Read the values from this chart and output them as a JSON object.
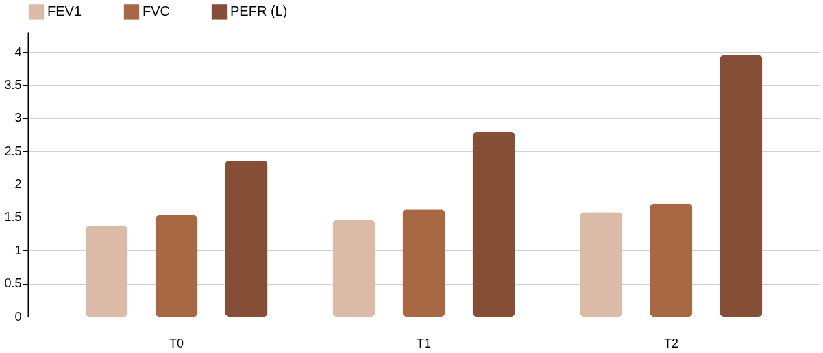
{
  "chart_data": {
    "type": "bar",
    "categories": [
      "T0",
      "T1",
      "T2"
    ],
    "series": [
      {
        "name": "FEV1",
        "color": "#dcbaa8",
        "values": [
          1.37,
          1.46,
          1.58
        ]
      },
      {
        "name": "FVC",
        "color": "#a86844",
        "values": [
          1.53,
          1.62,
          1.71
        ]
      },
      {
        "name": "PEFR (L)",
        "color": "#844f36",
        "values": [
          2.36,
          2.79,
          3.95
        ]
      }
    ],
    "ylim": [
      0,
      4.3
    ],
    "yticks": [
      0,
      0.5,
      1,
      1.5,
      2,
      2.5,
      3,
      3.5,
      4
    ],
    "grid": "y",
    "legend": "top"
  }
}
